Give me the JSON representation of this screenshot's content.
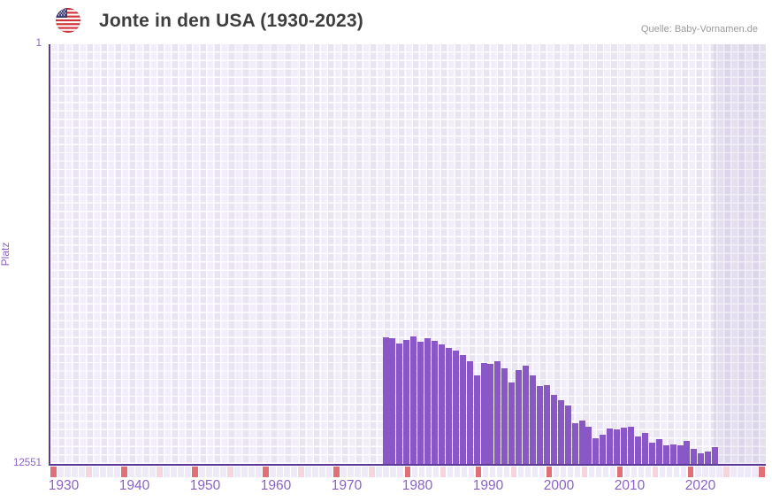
{
  "header": {
    "title": "Jonte in den USA (1930-2023)",
    "source": "Quelle: Baby-Vornamen.de",
    "flag_icon": "us-flag-round-icon"
  },
  "chart_data": {
    "type": "bar",
    "title": "Jonte in den USA (1930-2023)",
    "ylabel": "Platz",
    "xlabel": "",
    "y_axis": {
      "top_tick_label": "1",
      "bottom_tick_label": "12551",
      "min": 1,
      "max": 12551,
      "inverted": true
    },
    "x_tick_labels": [
      "1930",
      "1940",
      "1950",
      "1960",
      "1970",
      "1980",
      "1990",
      "2000",
      "2010",
      "2020"
    ],
    "grid": true,
    "legend": "none",
    "series": [
      {
        "name": "Platz",
        "years": [
          1976,
          1977,
          1978,
          1979,
          1980,
          1981,
          1982,
          1983,
          1984,
          1985,
          1986,
          1987,
          1988,
          1989,
          1990,
          1991,
          1992,
          1993,
          1994,
          1995,
          1996,
          1997,
          1998,
          1999,
          2000,
          2001,
          2002,
          2003,
          2004,
          2005,
          2006,
          2007,
          2008,
          2009,
          2010,
          2011,
          2012,
          2013,
          2014,
          2015,
          2016,
          2017,
          2018,
          2019,
          2020,
          2021,
          2022,
          2023
        ],
        "values": [
          8770,
          8800,
          8960,
          8830,
          8740,
          8900,
          8800,
          8870,
          8980,
          9090,
          9160,
          9300,
          9490,
          9910,
          9520,
          9560,
          9490,
          9690,
          10110,
          9730,
          9620,
          9910,
          10220,
          10200,
          10490,
          10650,
          10810,
          11320,
          11240,
          11430,
          11790,
          11670,
          11500,
          11530,
          11470,
          11430,
          11720,
          11630,
          11920,
          11800,
          12000,
          11960,
          11990,
          11870,
          12100,
          12230,
          12180,
          12050
        ]
      }
    ],
    "notes": "Bars absent for 1930-1975 (name unranked); shaded band at right edge of plot after last data year"
  },
  "axis_marks": {
    "cells": 101,
    "major_every": 10,
    "minor_every": 5
  },
  "colors": {
    "bar": "#8a57c6",
    "axis_line": "#5c3999",
    "tick_label": "#8a62c9",
    "grid_cell_light": "#f2edfa",
    "grid_cell_dark": "#e9e3f4",
    "right_band_overlay": "rgba(90,64,145,0.085)",
    "mark_major": "#e26e77",
    "mark_minor": "#f6d6dd",
    "mark_default": "#efeaf8",
    "title_text": "#3e3e3e",
    "source_text": "#9b9b9b"
  }
}
